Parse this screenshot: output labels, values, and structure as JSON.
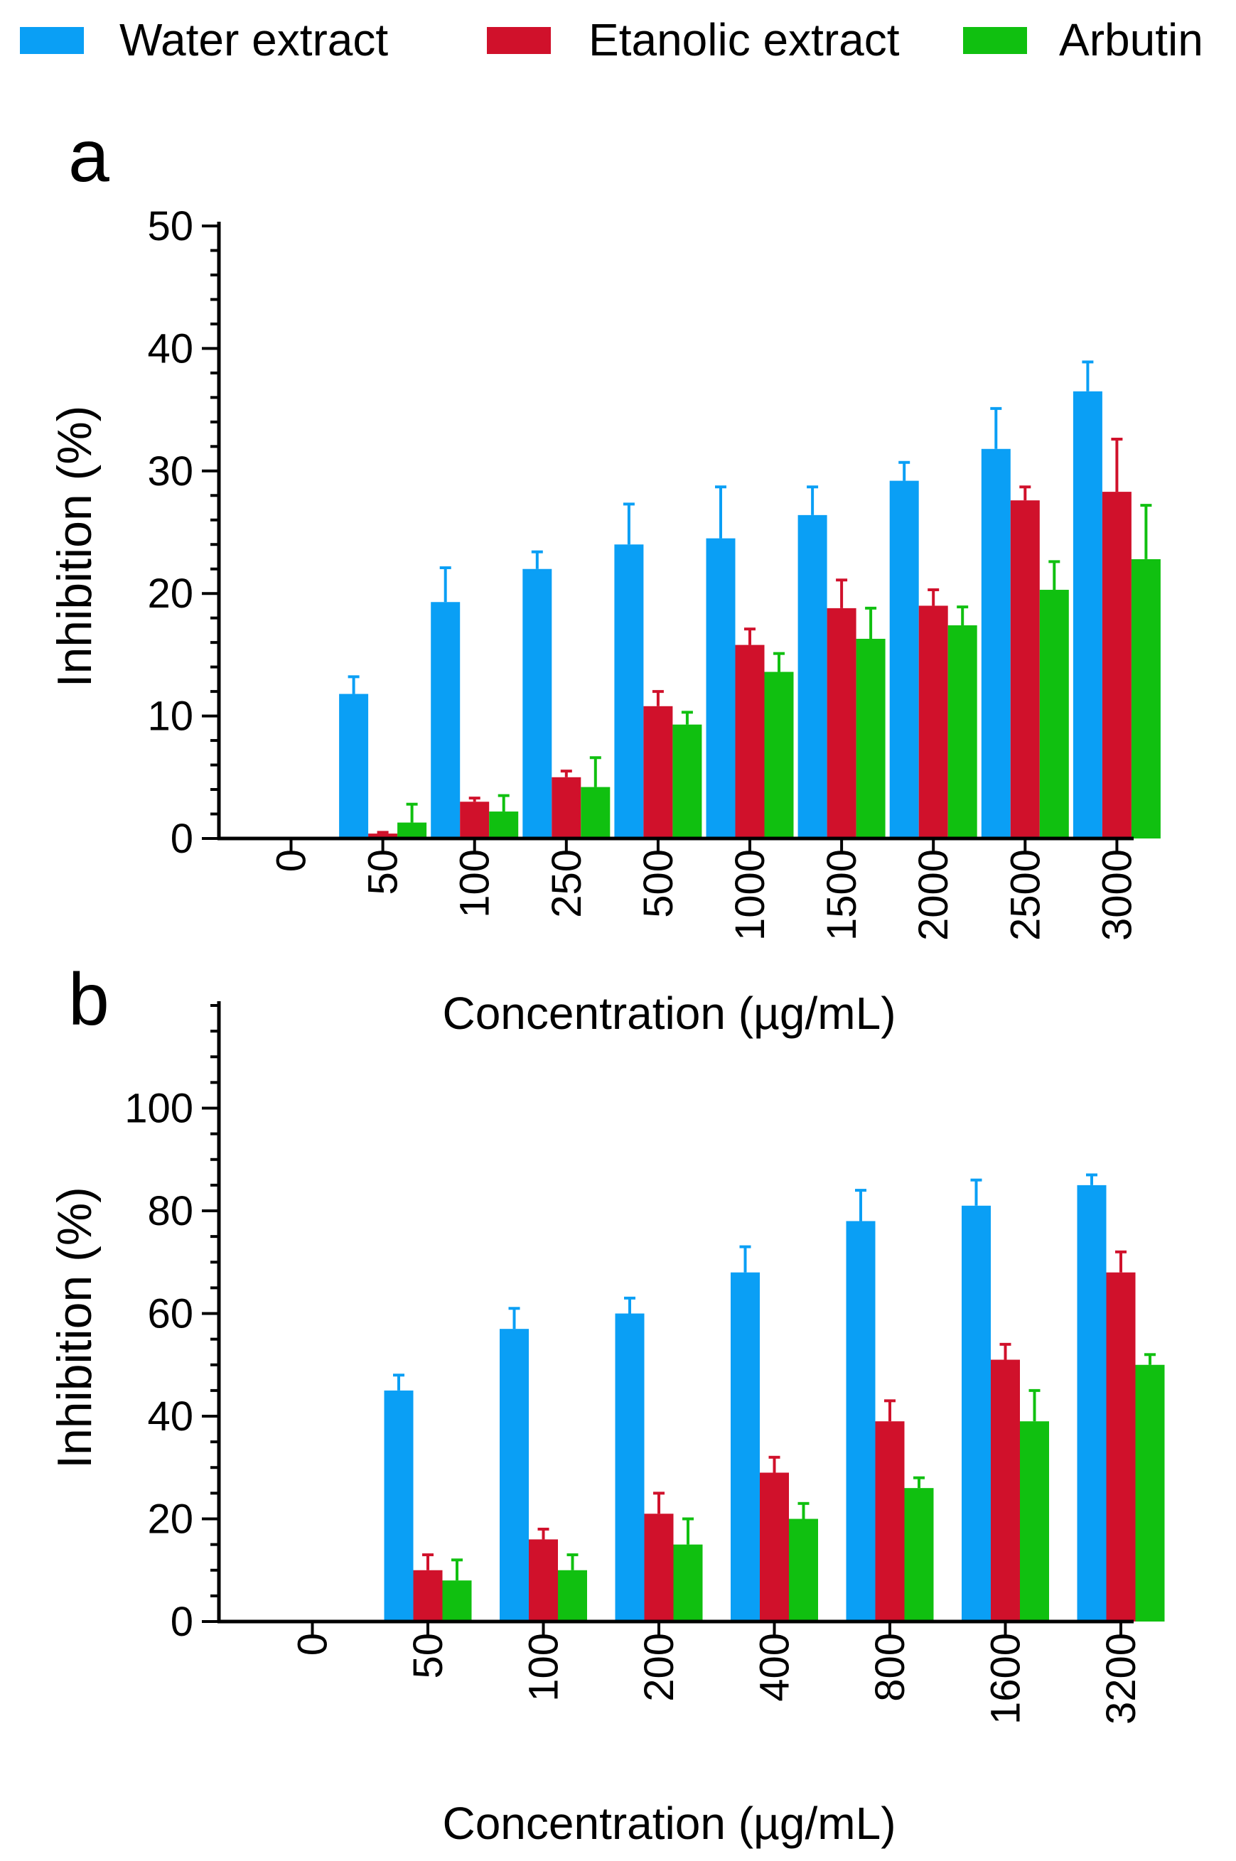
{
  "legend": {
    "items": [
      {
        "label": "Water extract",
        "color": "#0a9ff5"
      },
      {
        "label": "Etanolic extract",
        "color": "#d0112b"
      },
      {
        "label": "Arbutin",
        "color": "#10c010"
      }
    ]
  },
  "panels": {
    "a": {
      "letter": "a"
    },
    "b": {
      "letter": "b"
    }
  },
  "chart_data": [
    {
      "panel": "a",
      "type": "bar",
      "title": "",
      "xlabel": "Concentration (µg/mL)",
      "ylabel": "Inhibition (%)",
      "ylim": [
        0,
        50
      ],
      "yticks": [
        0,
        10,
        20,
        30,
        40,
        50
      ],
      "categories": [
        "0",
        "50",
        "100",
        "250",
        "500",
        "1000",
        "1500",
        "2000",
        "2500",
        "3000"
      ],
      "series": [
        {
          "name": "Water extract",
          "color": "#0a9ff5",
          "values": [
            0,
            11.8,
            19.3,
            22.0,
            24.0,
            24.5,
            26.4,
            29.2,
            31.8,
            36.5
          ],
          "errors": [
            0,
            1.4,
            2.8,
            1.4,
            3.3,
            4.2,
            2.3,
            1.5,
            3.3,
            2.4
          ]
        },
        {
          "name": "Etanolic extract",
          "color": "#d0112b",
          "values": [
            0,
            0.4,
            3.0,
            5.0,
            10.8,
            15.8,
            18.8,
            19.0,
            27.6,
            28.3
          ],
          "errors": [
            0,
            0.1,
            0.3,
            0.5,
            1.2,
            1.3,
            2.3,
            1.3,
            1.1,
            4.3
          ]
        },
        {
          "name": "Arbutin",
          "color": "#10c010",
          "values": [
            0,
            1.3,
            2.2,
            4.2,
            9.3,
            13.6,
            16.3,
            17.4,
            20.3,
            22.8
          ],
          "errors": [
            0,
            1.5,
            1.3,
            2.4,
            1.0,
            1.5,
            2.5,
            1.5,
            2.3,
            4.4
          ]
        }
      ]
    },
    {
      "panel": "b",
      "type": "bar",
      "title": "",
      "xlabel": "Concentration (µg/mL)",
      "ylabel": "Inhibition (%)",
      "ylim": [
        0,
        120
      ],
      "yticks": [
        0,
        20,
        40,
        60,
        80,
        100
      ],
      "categories": [
        "0",
        "50",
        "100",
        "200",
        "400",
        "800",
        "1600",
        "3200"
      ],
      "series": [
        {
          "name": "Water extract",
          "color": "#0a9ff5",
          "values": [
            0,
            45,
            57,
            60,
            68,
            78,
            81,
            85
          ],
          "errors": [
            0,
            3,
            4,
            3,
            5,
            6,
            5,
            2
          ]
        },
        {
          "name": "Etanolic extract",
          "color": "#d0112b",
          "values": [
            0,
            10,
            16,
            21,
            29,
            39,
            51,
            68
          ],
          "errors": [
            0,
            3,
            2,
            4,
            3,
            4,
            3,
            4
          ]
        },
        {
          "name": "Arbutin",
          "color": "#10c010",
          "values": [
            0,
            8,
            10,
            15,
            20,
            26,
            39,
            50
          ],
          "errors": [
            0,
            4,
            3,
            5,
            3,
            2,
            6,
            2
          ]
        }
      ]
    }
  ]
}
